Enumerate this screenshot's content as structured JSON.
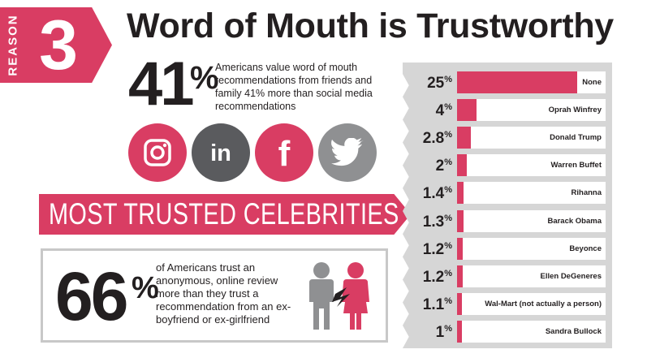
{
  "badge": {
    "word": "REASON",
    "number": "3"
  },
  "headline": "Word of Mouth is Trustworthy",
  "stat41": {
    "value": "41",
    "unit": "%",
    "text": "Americans value word of mouth recommendations from friends and family 41% more than social media recommendations"
  },
  "social": [
    {
      "name": "instagram-icon",
      "color": "#d93d63"
    },
    {
      "name": "linkedin-icon",
      "color": "#5a5b5e"
    },
    {
      "name": "facebook-icon",
      "color": "#d93d63"
    },
    {
      "name": "twitter-icon",
      "color": "#8f9092"
    }
  ],
  "banner": {
    "text": "MOST TRUSTED CELEBRITIES"
  },
  "stat66": {
    "value": "66",
    "unit": "%",
    "text": "of Americans trust an anonymous, online review more than they trust a recommendation from an ex-boyfriend or ex-girlfriend"
  },
  "colors": {
    "accent": "#d93d63",
    "dark": "#231f20",
    "panel": "#d6d6d6",
    "gray": "#8f9092"
  },
  "chart_data": {
    "type": "bar",
    "orientation": "horizontal",
    "title": "Most Trusted Celebrities",
    "unit": "%",
    "categories": [
      "None",
      "Oprah Winfrey",
      "Donald Trump",
      "Warren Buffet",
      "Rihanna",
      "Barack Obama",
      "Beyonce",
      "Ellen DeGeneres",
      "Wal-Mart (not actually a person)",
      "Sandra Bullock"
    ],
    "values": [
      25,
      4,
      2.8,
      2,
      1.4,
      1.3,
      1.2,
      1.2,
      1.1,
      1
    ],
    "value_labels": [
      "25",
      "4",
      "2.8",
      "2",
      "1.4",
      "1.3",
      "1.2",
      "1.2",
      "1.1",
      "1"
    ],
    "xlim": [
      0,
      31
    ]
  }
}
